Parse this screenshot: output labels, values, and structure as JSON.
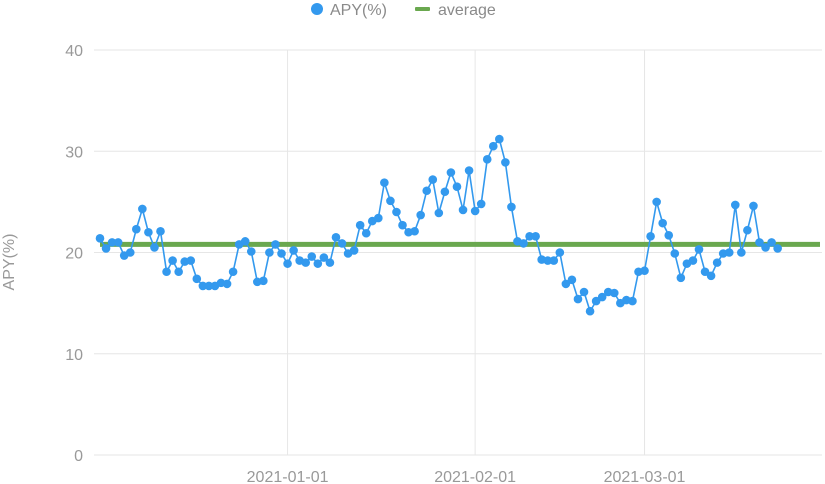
{
  "chart_data": {
    "type": "line",
    "title": "",
    "xlabel": "",
    "ylabel": "APY(%)",
    "legend": {
      "placement": "top-center",
      "items": [
        {
          "label": "APY(%)",
          "symbol": "dot",
          "color": "#3399ee"
        },
        {
          "label": "average",
          "symbol": "line",
          "color": "#6aa84f"
        }
      ]
    },
    "grid": true,
    "ylim": [
      0,
      40
    ],
    "yticks": [
      0,
      10,
      20,
      30,
      40
    ],
    "y_tick_labels": [
      "0",
      "10",
      "20",
      "30",
      "40"
    ],
    "xlim": [
      "2020-12-01",
      "2021-03-30"
    ],
    "xticks": [
      "2021-01-01",
      "2021-02-01",
      "2021-03-01"
    ],
    "x_tick_labels": [
      "2021-01-01",
      "2021-02-01",
      "2021-03-01"
    ],
    "series": [
      {
        "name": "APY(%)",
        "color": "#3399ee",
        "start_date": "2020-12-01",
        "values": [
          21.4,
          20.4,
          21.0,
          21.0,
          19.7,
          20.0,
          22.3,
          24.3,
          22.0,
          20.5,
          22.1,
          18.1,
          19.2,
          18.1,
          19.1,
          19.2,
          17.4,
          16.7,
          16.7,
          16.7,
          17.0,
          16.9,
          18.1,
          20.8,
          21.1,
          20.1,
          17.1,
          17.2,
          20.0,
          20.8,
          19.9,
          18.9,
          20.2,
          19.2,
          19.0,
          19.6,
          18.9,
          19.5,
          19.0,
          21.5,
          20.9,
          19.9,
          20.2,
          22.7,
          21.9,
          23.1,
          23.4,
          26.9,
          25.1,
          24.0,
          22.7,
          22.0,
          22.1,
          23.7,
          26.1,
          27.2,
          23.9,
          26.0,
          27.9,
          26.5,
          24.2,
          28.1,
          24.1,
          24.8,
          29.2,
          30.5,
          31.2,
          28.9,
          24.5,
          21.1,
          20.9,
          21.6,
          21.6,
          19.3,
          19.2,
          19.2,
          20.0,
          16.9,
          17.3,
          15.4,
          16.1,
          14.2,
          15.2,
          15.6,
          16.1,
          16.0,
          15.0,
          15.3,
          15.2,
          18.1,
          18.2,
          21.6,
          25.0,
          22.9,
          21.7,
          19.9,
          17.5,
          18.9,
          19.2,
          20.3,
          18.1,
          17.7,
          19.0,
          19.9,
          20.0,
          24.7,
          20.0,
          22.2,
          24.6,
          21.0,
          20.5,
          21.0,
          20.4
        ]
      },
      {
        "name": "average",
        "color": "#6aa84f",
        "x": [
          "2020-12-01",
          "2021-03-30"
        ],
        "values": [
          20.8,
          20.8
        ]
      }
    ]
  }
}
